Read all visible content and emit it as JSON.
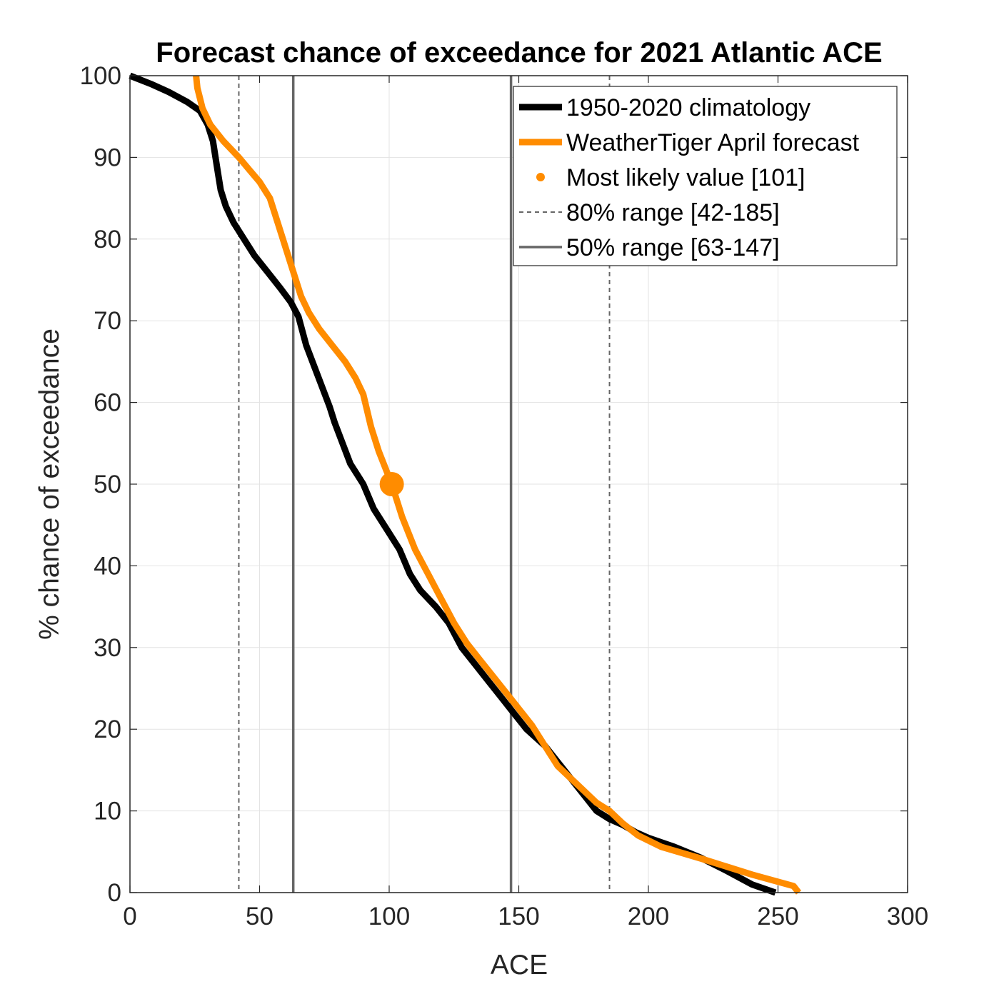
{
  "chart_data": {
    "type": "line",
    "title": "Forecast chance of exceedance for 2021 Atlantic ACE",
    "xlabel": "ACE",
    "ylabel": "% chance of exceedance",
    "xlim": [
      0,
      300
    ],
    "ylim": [
      0,
      100
    ],
    "xticks": [
      0,
      50,
      100,
      150,
      200,
      250,
      300
    ],
    "yticks": [
      0,
      10,
      20,
      30,
      40,
      50,
      60,
      70,
      80,
      90,
      100
    ],
    "grid": true,
    "legend_position": "top-right",
    "colors": {
      "climatology": "#000000",
      "forecast": "#ff8c00",
      "range": "#666666"
    },
    "series": [
      {
        "name": "1950-2020 climatology",
        "style": "solid-thick",
        "points": [
          [
            0,
            100
          ],
          [
            8,
            99
          ],
          [
            15,
            98
          ],
          [
            22,
            96.8
          ],
          [
            27,
            95.7
          ],
          [
            30,
            94
          ],
          [
            32,
            92
          ],
          [
            33,
            90
          ],
          [
            34,
            88
          ],
          [
            35,
            86
          ],
          [
            37,
            84
          ],
          [
            40,
            82
          ],
          [
            44,
            80
          ],
          [
            48,
            78
          ],
          [
            53,
            76
          ],
          [
            58,
            74
          ],
          [
            62,
            72.3
          ],
          [
            65,
            70.5
          ],
          [
            68,
            67
          ],
          [
            71,
            64.5
          ],
          [
            74,
            62
          ],
          [
            77,
            59.5
          ],
          [
            79,
            57.5
          ],
          [
            82,
            55
          ],
          [
            85,
            52.5
          ],
          [
            90,
            50
          ],
          [
            94,
            47
          ],
          [
            96,
            46
          ],
          [
            100,
            44
          ],
          [
            104,
            42
          ],
          [
            108,
            39
          ],
          [
            112,
            37
          ],
          [
            118,
            35
          ],
          [
            123,
            33
          ],
          [
            128,
            30
          ],
          [
            133,
            28
          ],
          [
            138,
            26
          ],
          [
            143,
            24
          ],
          [
            148,
            22
          ],
          [
            153,
            20
          ],
          [
            160,
            18
          ],
          [
            165,
            16
          ],
          [
            170,
            14
          ],
          [
            175,
            12
          ],
          [
            180,
            10
          ],
          [
            185,
            9
          ],
          [
            190,
            8.3
          ],
          [
            195,
            7.4
          ],
          [
            200,
            6.7
          ],
          [
            210,
            5.6
          ],
          [
            220,
            4.3
          ],
          [
            230,
            2.7
          ],
          [
            240,
            1
          ],
          [
            249,
            0
          ]
        ]
      },
      {
        "name": "WeatherTiger April forecast",
        "style": "solid-thick",
        "points": [
          [
            25.5,
            100
          ],
          [
            26,
            98.5
          ],
          [
            28,
            96
          ],
          [
            31,
            94
          ],
          [
            36,
            92
          ],
          [
            42,
            90
          ],
          [
            46,
            88.5
          ],
          [
            50,
            87
          ],
          [
            54,
            85
          ],
          [
            57,
            82
          ],
          [
            60,
            79
          ],
          [
            64,
            75
          ],
          [
            66,
            73
          ],
          [
            69,
            71
          ],
          [
            73,
            69
          ],
          [
            78,
            67
          ],
          [
            83,
            65
          ],
          [
            87,
            63
          ],
          [
            90,
            61
          ],
          [
            93,
            57
          ],
          [
            96,
            54
          ],
          [
            101,
            50
          ],
          [
            105,
            46
          ],
          [
            110,
            42
          ],
          [
            115,
            39
          ],
          [
            120,
            36
          ],
          [
            125,
            33
          ],
          [
            130,
            30.5
          ],
          [
            135,
            28.5
          ],
          [
            140,
            26.5
          ],
          [
            145,
            24.5
          ],
          [
            150,
            22.5
          ],
          [
            155,
            20.5
          ],
          [
            160,
            18
          ],
          [
            165,
            15.5
          ],
          [
            170,
            14
          ],
          [
            175,
            12.5
          ],
          [
            180,
            11
          ],
          [
            185,
            10
          ],
          [
            190,
            8.5
          ],
          [
            196,
            7
          ],
          [
            205,
            5.6
          ],
          [
            220,
            4.2
          ],
          [
            240,
            2.2
          ],
          [
            256,
            0.8
          ],
          [
            258,
            0
          ]
        ]
      }
    ],
    "markers": [
      {
        "name": "Most likely value [101]",
        "x": 101,
        "y": 50
      }
    ],
    "vlines": [
      {
        "name": "80% range [42-185]",
        "style": "dashed",
        "x": [
          42,
          185
        ]
      },
      {
        "name": "50% range [63-147]",
        "style": "solid",
        "x": [
          63,
          147
        ]
      }
    ],
    "legend": [
      {
        "label": "1950-2020 climatology",
        "kind": "thick-line",
        "color": "#000000"
      },
      {
        "label": "WeatherTiger April forecast",
        "kind": "thick-line",
        "color": "#ff8c00"
      },
      {
        "label": "Most likely value [101]",
        "kind": "dot",
        "color": "#ff8c00"
      },
      {
        "label": "80% range [42-185]",
        "kind": "dashed-line",
        "color": "#666666"
      },
      {
        "label": "50% range [63-147]",
        "kind": "solid-line",
        "color": "#666666"
      }
    ]
  }
}
